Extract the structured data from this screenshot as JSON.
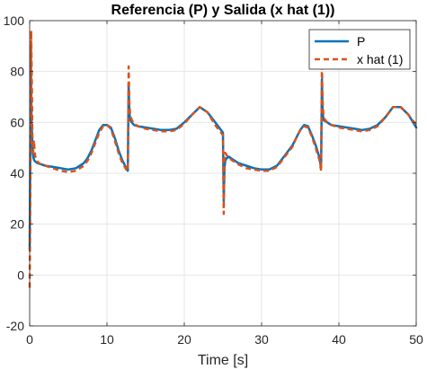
{
  "chart_data": {
    "type": "line",
    "title": "Referencia (P) y Salida (x hat (1))",
    "xlabel": "Time [s]",
    "ylabel": "",
    "xlim": [
      0,
      50
    ],
    "ylim": [
      -20,
      100
    ],
    "xticks": [
      0,
      10,
      20,
      30,
      40,
      50
    ],
    "yticks": [
      -20,
      0,
      20,
      40,
      60,
      80,
      100
    ],
    "grid": true,
    "legend_position": "top-right",
    "colors": {
      "P": "#0072BD",
      "x_hat_1": "#D95319",
      "grid": "#e6e6e6",
      "axis": "#262626"
    },
    "series": [
      {
        "name": "P",
        "style": "solid",
        "x": [
          0.0,
          0.15,
          0.25,
          0.4,
          0.5,
          0.6,
          0.8,
          1.0,
          1.5,
          2,
          3,
          4,
          5,
          6,
          7,
          7.5,
          8,
          8.5,
          9,
          9.5,
          10,
          10.5,
          11,
          11.5,
          12,
          12.5,
          12.7,
          12.8,
          12.9,
          13.0,
          13.2,
          13.5,
          14,
          15,
          16,
          17,
          18,
          19,
          20,
          21,
          22,
          23,
          24,
          25.0,
          25.1,
          25.2,
          25.3,
          25.5,
          25.8,
          26,
          27,
          28,
          29,
          30,
          31,
          32,
          33,
          34,
          34.5,
          35,
          35.5,
          36,
          36.5,
          37,
          37.5,
          37.7,
          37.8,
          37.9,
          38.0,
          38.2,
          38.5,
          39,
          40,
          41,
          42,
          43,
          44,
          45,
          46,
          47,
          48,
          49,
          50
        ],
        "y": [
          10,
          90,
          60,
          48,
          46,
          45,
          44.5,
          44,
          43.5,
          43,
          42.5,
          42,
          41.5,
          42,
          44,
          46,
          49,
          53,
          57,
          59,
          59,
          58,
          54,
          49,
          45,
          42,
          41,
          75,
          64,
          61,
          60,
          59,
          58.5,
          58,
          57.5,
          57,
          57,
          57.5,
          60,
          63,
          66,
          64,
          60,
          56,
          29,
          42,
          45,
          46,
          46.5,
          46,
          44,
          43,
          42,
          41.5,
          41.5,
          43,
          47,
          51,
          54,
          57,
          59,
          58.5,
          55,
          51,
          46,
          42,
          77,
          64,
          61,
          60.5,
          60,
          59,
          58.5,
          58,
          57.5,
          57,
          57.5,
          59,
          62,
          66,
          66,
          63,
          58
        ]
      },
      {
        "name": "x hat (1)",
        "style": "dashed",
        "x": [
          0.0,
          0.1,
          0.2,
          0.3,
          0.35,
          0.45,
          0.55,
          0.7,
          0.9,
          1.2,
          1.5,
          2,
          3,
          4,
          5,
          6,
          7,
          7.5,
          8,
          8.5,
          9,
          9.5,
          10,
          10.5,
          11,
          11.5,
          12,
          12.5,
          12.7,
          12.8,
          12.9,
          13.0,
          13.2,
          13.5,
          14,
          15,
          16,
          17,
          18,
          19,
          20,
          21,
          22,
          23,
          24,
          25.0,
          25.1,
          25.2,
          25.3,
          25.5,
          25.8,
          26,
          27,
          28,
          29,
          30,
          31,
          32,
          33,
          34,
          34.5,
          35,
          35.5,
          36,
          36.5,
          37,
          37.5,
          37.7,
          37.8,
          37.9,
          38.0,
          38.2,
          38.5,
          39,
          40,
          41,
          42,
          43,
          44,
          45,
          46,
          47,
          48,
          49,
          50
        ],
        "y": [
          -5,
          40,
          96,
          70,
          55,
          48,
          53,
          47,
          45,
          44,
          43.5,
          43,
          42,
          41,
          40.5,
          41,
          43,
          45,
          48,
          52,
          56,
          58.5,
          59,
          57.5,
          53,
          48,
          44,
          41.5,
          41,
          82,
          68,
          63,
          61,
          59.5,
          58.5,
          57.5,
          57,
          56.5,
          56.5,
          57,
          59.5,
          63,
          66,
          64,
          59,
          55,
          24,
          48,
          48,
          47,
          46,
          45.5,
          43.5,
          42,
          41.5,
          41,
          41,
          42.5,
          46.5,
          50.5,
          54,
          57,
          58.5,
          58,
          54.5,
          50,
          45,
          41,
          82,
          68,
          63,
          61,
          60,
          59,
          58,
          57.5,
          57,
          56.5,
          57,
          58.5,
          62,
          66,
          66,
          63,
          59
        ]
      }
    ]
  }
}
